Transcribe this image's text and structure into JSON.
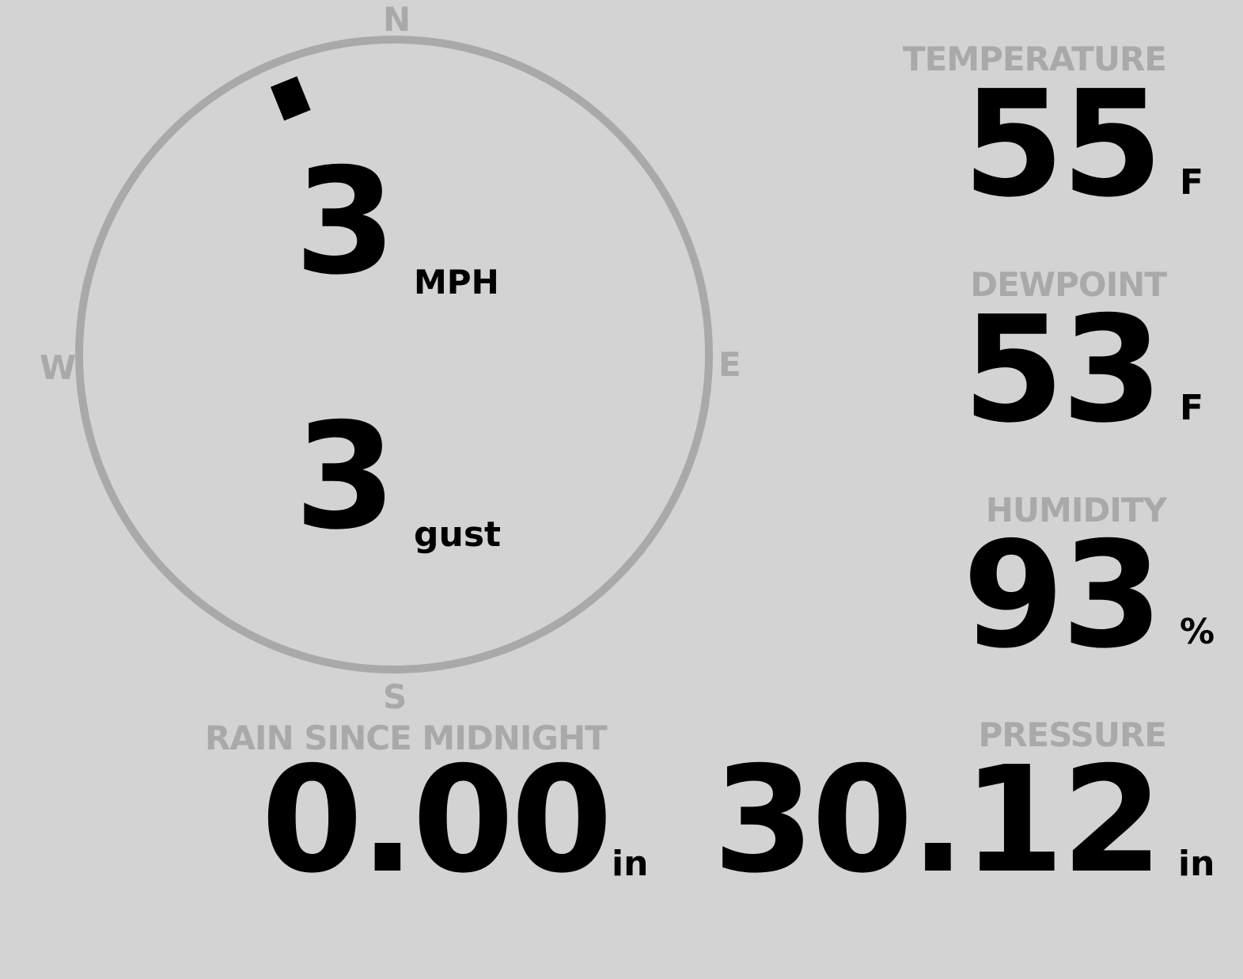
{
  "compass": {
    "labels": {
      "n": "N",
      "s": "S",
      "e": "E",
      "w": "W"
    },
    "wind_direction_deg": 338,
    "speed": "3",
    "speed_unit": "MPH",
    "gust": "3",
    "gust_unit": "gust"
  },
  "temperature": {
    "label": "TEMPERATURE",
    "value": "55",
    "unit": "F"
  },
  "dewpoint": {
    "label": "DEWPOINT",
    "value": "53",
    "unit": "F"
  },
  "humidity": {
    "label": "HUMIDITY",
    "value": "93",
    "unit": "%"
  },
  "rain": {
    "label": "RAIN SINCE MIDNIGHT",
    "value": "0.00",
    "unit": "in"
  },
  "pressure": {
    "label": "PRESSURE",
    "value": "30.12",
    "unit": "in"
  },
  "colors": {
    "background": "#d3d3d3",
    "label": "#a9a9a9",
    "value": "#000000"
  }
}
